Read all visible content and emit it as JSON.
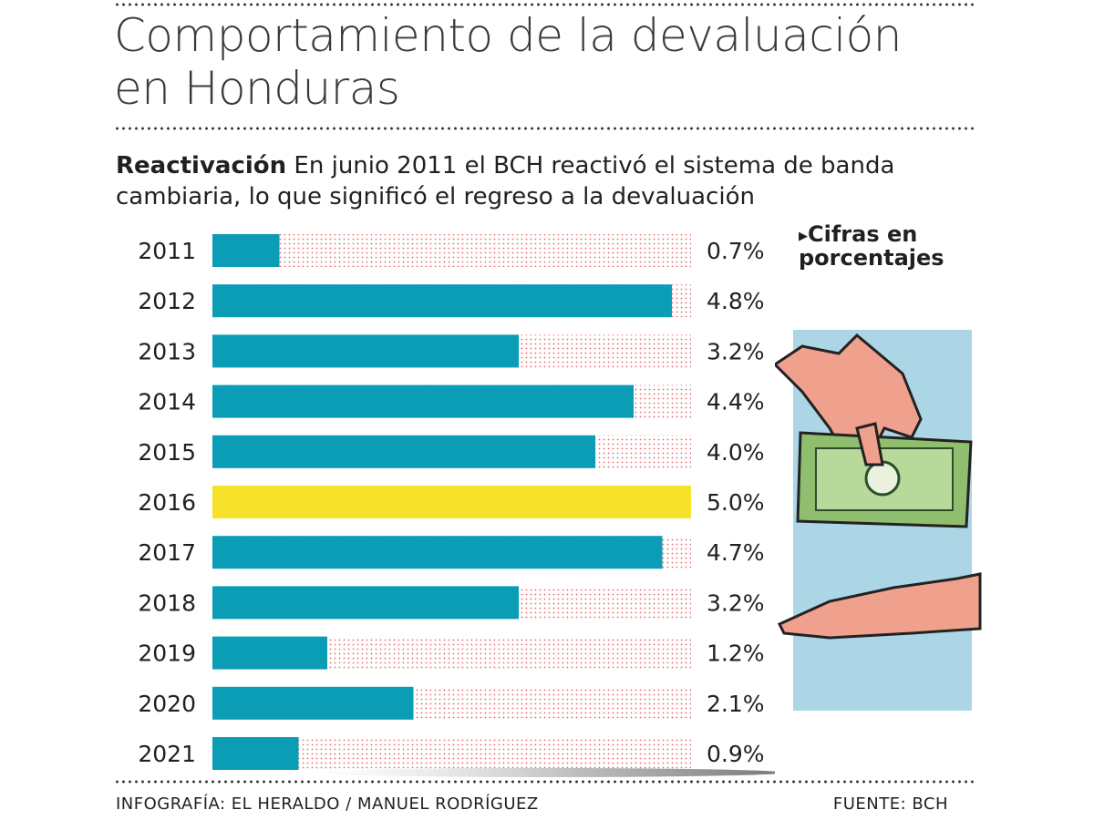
{
  "title_line1": "Comportamiento de la devaluación",
  "title_line2": "en Honduras",
  "subtitle_bold": "Reactivación",
  "subtitle_text": " En junio 2011 el BCH reactivó el sistema de banda cambiaria, lo que significó el regreso a la devaluación",
  "unit_note_line1": "Cifras en",
  "unit_note_line2": "porcentajes",
  "footer_credit": "INFOGRAFÍA: EL HERALDO / MANUEL RODRÍGUEZ",
  "footer_source": "FUENTE: BCH",
  "colors": {
    "bar": "#0b9cb6",
    "highlight": "#f6e22a",
    "dots": "#e8676a",
    "panel": "#acd6e5"
  },
  "chart_data": {
    "type": "bar",
    "orientation": "horizontal",
    "categories": [
      "2011",
      "2012",
      "2013",
      "2014",
      "2015",
      "2016",
      "2017",
      "2018",
      "2019",
      "2020",
      "2021"
    ],
    "values": [
      0.7,
      4.8,
      3.2,
      4.4,
      4.0,
      5.0,
      4.7,
      3.2,
      1.2,
      2.1,
      0.9
    ],
    "value_labels": [
      "0.7%",
      "4.8%",
      "3.2%",
      "4.4%",
      "4.0%",
      "5.0%",
      "4.7%",
      "3.2%",
      "1.2%",
      "2.1%",
      "0.9%"
    ],
    "highlight": "2016",
    "xlim": [
      0,
      5
    ],
    "grid": false
  }
}
